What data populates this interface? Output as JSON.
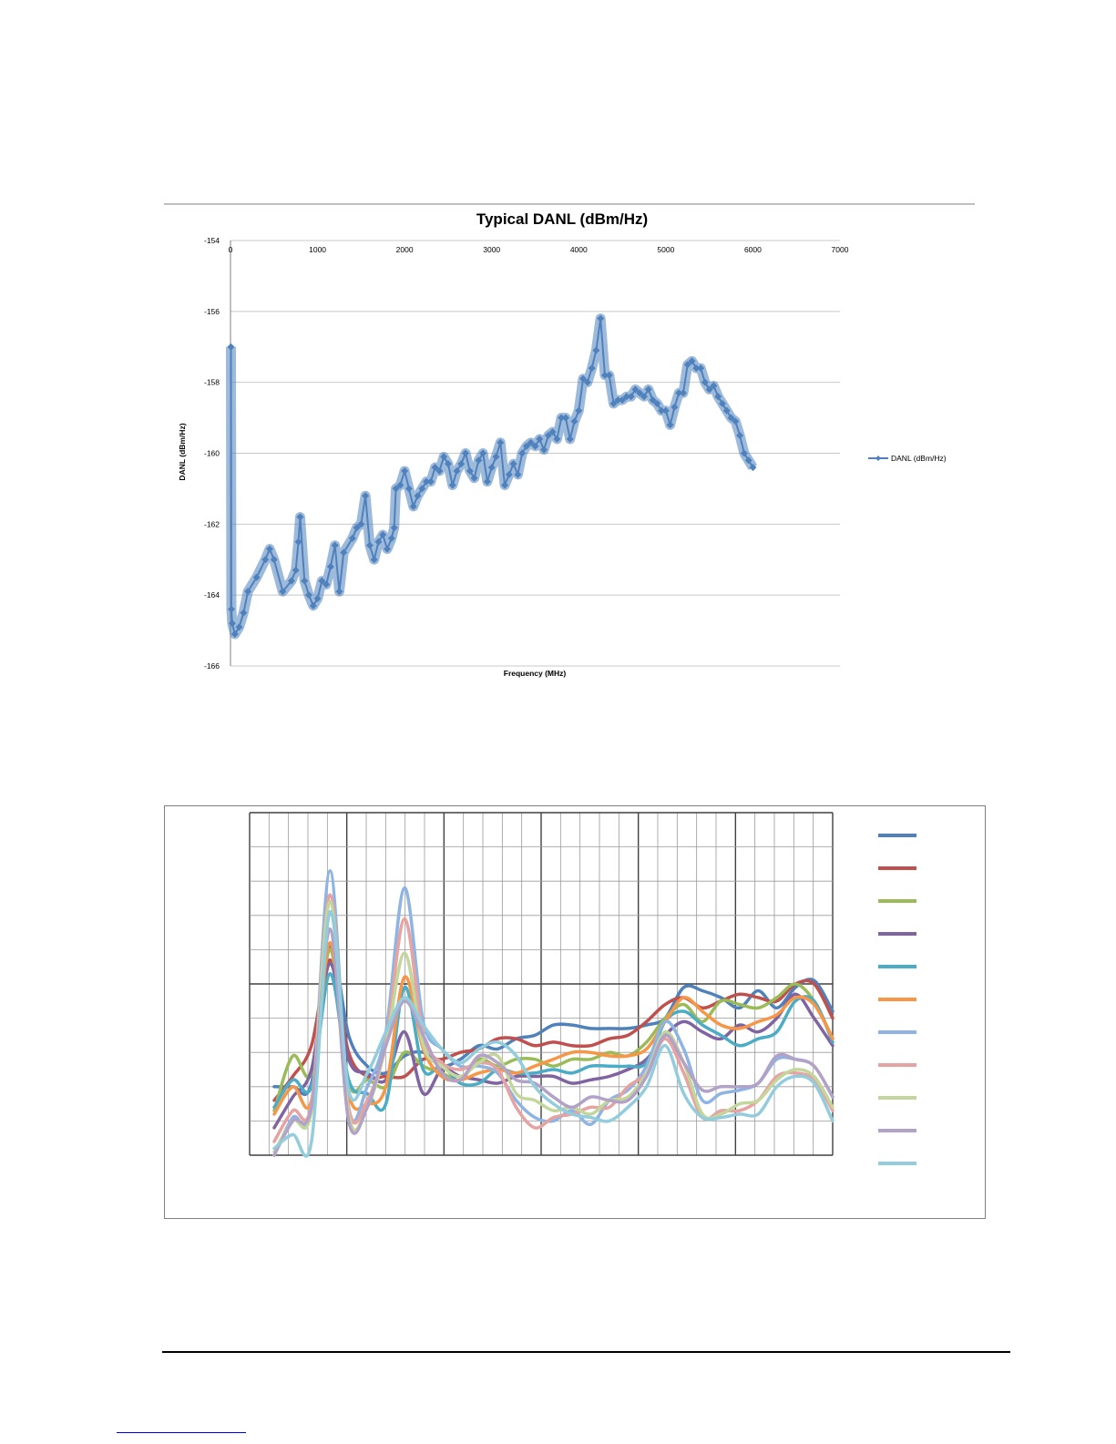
{
  "chart_data": [
    {
      "type": "line",
      "title": "Typical DANL (dBm/Hz)",
      "xlabel": "Frequency (MHz)",
      "ylabel": "DANL (dBm/Hz)",
      "xlim": [
        0,
        7000
      ],
      "ylim": [
        -166,
        -154
      ],
      "x_ticks": [
        "0",
        "1000",
        "2000",
        "3000",
        "4000",
        "5000",
        "6000",
        "7000"
      ],
      "y_ticks": [
        "-154",
        "-156",
        "-158",
        "-160",
        "-162",
        "-164",
        "-166"
      ],
      "x_axis_position": "top",
      "grid": true,
      "legend": "right",
      "marker": "diamond",
      "series": [
        {
          "name": "DANL (dBm/Hz)",
          "color": "#4f81bd",
          "x": [
            5,
            10,
            20,
            50,
            100,
            150,
            200,
            300,
            400,
            450,
            500,
            600,
            700,
            750,
            780,
            800,
            850,
            900,
            950,
            1000,
            1050,
            1100,
            1150,
            1200,
            1250,
            1300,
            1400,
            1450,
            1500,
            1550,
            1600,
            1650,
            1700,
            1750,
            1800,
            1850,
            1880,
            1900,
            1950,
            2000,
            2050,
            2100,
            2150,
            2200,
            2250,
            2300,
            2350,
            2400,
            2450,
            2500,
            2550,
            2600,
            2650,
            2700,
            2750,
            2800,
            2850,
            2900,
            2950,
            3000,
            3050,
            3100,
            3150,
            3200,
            3250,
            3300,
            3350,
            3400,
            3450,
            3500,
            3550,
            3600,
            3650,
            3700,
            3750,
            3800,
            3850,
            3900,
            3950,
            4000,
            4050,
            4100,
            4150,
            4200,
            4250,
            4300,
            4350,
            4400,
            4450,
            4500,
            4550,
            4600,
            4650,
            4700,
            4750,
            4800,
            4850,
            4900,
            4950,
            5000,
            5050,
            5100,
            5150,
            5200,
            5250,
            5300,
            5350,
            5400,
            5450,
            5500,
            5550,
            5600,
            5650,
            5700,
            5750,
            5800,
            5850,
            5900,
            5950,
            6000
          ],
          "y": [
            -157.0,
            -164.4,
            -164.8,
            -165.1,
            -164.9,
            -164.5,
            -163.9,
            -163.5,
            -163.0,
            -162.7,
            -163.0,
            -163.9,
            -163.6,
            -163.3,
            -162.5,
            -161.8,
            -163.6,
            -164.0,
            -164.3,
            -164.1,
            -163.6,
            -163.7,
            -163.2,
            -162.6,
            -163.9,
            -162.8,
            -162.4,
            -162.1,
            -162.0,
            -161.2,
            -162.6,
            -163.0,
            -162.5,
            -162.3,
            -162.7,
            -162.4,
            -162.1,
            -161.0,
            -160.9,
            -160.5,
            -161.0,
            -161.5,
            -161.2,
            -161.0,
            -160.8,
            -160.8,
            -160.4,
            -160.5,
            -160.1,
            -160.3,
            -160.9,
            -160.5,
            -160.3,
            -160.0,
            -160.5,
            -160.7,
            -160.2,
            -160.0,
            -160.8,
            -160.4,
            -160.1,
            -159.7,
            -160.9,
            -160.6,
            -160.3,
            -160.6,
            -160.0,
            -159.8,
            -159.7,
            -159.8,
            -159.6,
            -159.9,
            -159.5,
            -159.4,
            -159.6,
            -159.0,
            -159.0,
            -159.6,
            -159.1,
            -158.8,
            -157.9,
            -158.0,
            -157.6,
            -157.1,
            -156.2,
            -157.8,
            -157.8,
            -158.6,
            -158.5,
            -158.5,
            -158.4,
            -158.4,
            -158.2,
            -158.3,
            -158.4,
            -158.2,
            -158.5,
            -158.6,
            -158.8,
            -158.8,
            -159.2,
            -158.7,
            -158.3,
            -158.3,
            -157.5,
            -157.4,
            -157.6,
            -157.6,
            -158.0,
            -158.2,
            -158.1,
            -158.4,
            -158.6,
            -158.8,
            -159.0,
            -159.1,
            -159.5,
            -160.0,
            -160.2,
            -160.4
          ]
        }
      ]
    },
    {
      "type": "line",
      "title": "",
      "xlabel": "",
      "ylabel": "",
      "grid": true,
      "legend": "right",
      "x": [
        0,
        1,
        2,
        3,
        4,
        5,
        6,
        7,
        8,
        9,
        10,
        11,
        12,
        13,
        14,
        15,
        16,
        17,
        18,
        19,
        20,
        21,
        22,
        23,
        24,
        25,
        26,
        27,
        28,
        29,
        30
      ],
      "series": [
        {
          "color": "#4f81bd",
          "values": [
            2.0,
            2.0,
            2.1,
            6.1,
            3.5,
            2.6,
            2.4,
            2.9,
            3.0,
            2.6,
            2.8,
            3.2,
            3.1,
            3.4,
            3.5,
            3.8,
            3.8,
            3.7,
            3.7,
            3.7,
            3.8,
            4.0,
            4.9,
            4.8,
            4.6,
            4.3,
            4.8,
            4.3,
            4.9,
            5.1,
            4.2
          ]
        },
        {
          "color": "#c0504d",
          "values": [
            1.6,
            2.3,
            3.2,
            5.7,
            3.0,
            2.3,
            2.3,
            2.3,
            2.8,
            2.8,
            3.0,
            3.1,
            3.4,
            3.4,
            3.2,
            3.3,
            3.2,
            3.2,
            3.4,
            3.5,
            3.9,
            4.4,
            4.6,
            4.3,
            4.5,
            4.7,
            4.6,
            4.5,
            5.0,
            5.0,
            4.0
          ]
        },
        {
          "color": "#9bbb59",
          "values": [
            1.3,
            2.9,
            2.4,
            6.0,
            2.1,
            2.2,
            2.0,
            3.0,
            2.6,
            2.4,
            2.2,
            2.8,
            2.6,
            2.8,
            2.8,
            2.6,
            2.8,
            2.8,
            3.0,
            2.9,
            3.3,
            4.0,
            4.4,
            3.9,
            4.5,
            4.4,
            4.3,
            4.6,
            5.0,
            4.5,
            3.4
          ]
        },
        {
          "color": "#8064a2",
          "values": [
            0.8,
            1.7,
            2.5,
            5.6,
            2.8,
            2.4,
            2.2,
            3.6,
            1.8,
            2.5,
            2.3,
            2.2,
            2.1,
            2.3,
            2.3,
            2.3,
            2.1,
            2.2,
            2.3,
            2.5,
            2.8,
            3.5,
            3.9,
            3.6,
            3.4,
            3.8,
            3.6,
            4.0,
            4.7,
            4.0,
            3.2
          ]
        },
        {
          "color": "#4bacc6",
          "values": [
            1.4,
            2.2,
            2.0,
            5.3,
            2.2,
            1.8,
            1.5,
            4.9,
            2.5,
            2.6,
            2.1,
            2.1,
            2.5,
            2.4,
            2.4,
            2.5,
            2.4,
            2.6,
            2.6,
            2.6,
            2.7,
            3.9,
            4.2,
            3.8,
            3.5,
            3.2,
            3.4,
            3.6,
            4.5,
            4.5,
            3.3
          ]
        },
        {
          "color": "#f79646",
          "values": [
            1.2,
            2.0,
            1.6,
            6.2,
            1.8,
            1.5,
            2.0,
            5.2,
            3.1,
            2.3,
            2.2,
            2.4,
            2.5,
            2.4,
            2.6,
            2.8,
            3.0,
            3.0,
            2.9,
            2.9,
            3.1,
            3.9,
            4.6,
            4.2,
            3.8,
            3.7,
            3.9,
            4.1,
            4.6,
            4.4,
            3.4
          ]
        },
        {
          "color": "#8eb4e3",
          "values": [
            -0.1,
            1.1,
            1.4,
            8.3,
            1.4,
            2.0,
            3.6,
            7.8,
            3.9,
            3.1,
            2.6,
            2.6,
            2.4,
            1.6,
            1.1,
            1.0,
            1.3,
            0.9,
            1.6,
            1.9,
            2.6,
            3.9,
            3.1,
            1.6,
            1.8,
            1.9,
            2.1,
            2.8,
            2.8,
            2.6,
            1.7
          ]
        },
        {
          "color": "#e6a3a1",
          "values": [
            0.4,
            1.3,
            1.5,
            7.6,
            1.4,
            1.6,
            3.3,
            6.9,
            3.5,
            2.7,
            2.5,
            2.7,
            2.5,
            1.4,
            0.8,
            1.1,
            1.2,
            1.4,
            1.4,
            2.0,
            2.4,
            3.4,
            2.4,
            1.1,
            1.3,
            1.3,
            1.6,
            2.3,
            2.4,
            2.2,
            1.3
          ]
        },
        {
          "color": "#c3d69b",
          "values": [
            0.1,
            1.0,
            1.3,
            7.4,
            1.2,
            1.4,
            3.2,
            5.9,
            3.2,
            2.6,
            2.3,
            2.7,
            2.9,
            1.8,
            1.6,
            1.3,
            1.4,
            1.2,
            1.6,
            1.7,
            2.4,
            3.6,
            2.7,
            1.2,
            1.2,
            1.5,
            1.6,
            2.2,
            2.5,
            2.3,
            1.4
          ]
        },
        {
          "color": "#b2a2c7",
          "values": [
            0.0,
            1.0,
            1.4,
            6.6,
            1.0,
            1.4,
            3.2,
            4.5,
            3.5,
            2.4,
            2.2,
            2.9,
            2.7,
            2.2,
            2.1,
            1.7,
            1.4,
            1.7,
            1.6,
            1.6,
            2.3,
            3.5,
            2.7,
            1.9,
            2.0,
            2.0,
            2.1,
            2.9,
            2.8,
            2.6,
            1.7
          ]
        },
        {
          "color": "#93cddd",
          "values": [
            0.2,
            0.6,
            0.4,
            7.1,
            1.9,
            2.4,
            3.6,
            4.6,
            3.8,
            3.1,
            2.7,
            3.1,
            3.3,
            2.9,
            2.0,
            1.5,
            1.2,
            1.1,
            1.0,
            1.4,
            2.0,
            3.2,
            1.8,
            1.1,
            1.1,
            1.2,
            1.2,
            2.0,
            2.3,
            2.1,
            1.0
          ]
        }
      ]
    }
  ]
}
